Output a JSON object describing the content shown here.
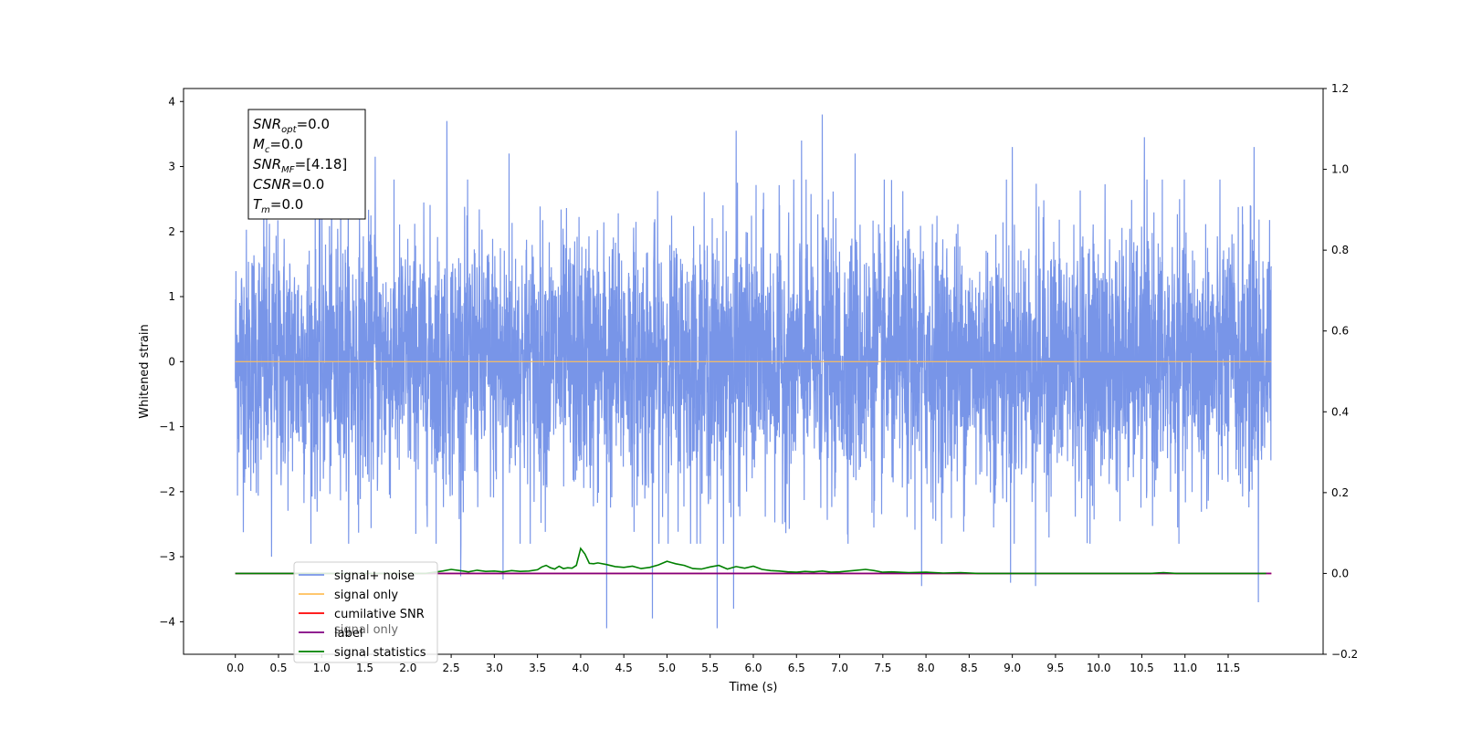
{
  "chart_data": {
    "type": "line",
    "xlabel": "Time (s)",
    "ylabel": "Whitened strain",
    "xlim": [
      -0.6,
      12.6
    ],
    "ylim": [
      -4.5,
      4.2
    ],
    "y2lim": [
      -0.2,
      1.2
    ],
    "grid": false,
    "legend_position": "lower-left",
    "x_ticks": [
      0.0,
      0.5,
      1.0,
      1.5,
      2.0,
      2.5,
      3.0,
      3.5,
      4.0,
      4.5,
      5.0,
      5.5,
      6.0,
      6.5,
      7.0,
      7.5,
      8.0,
      8.5,
      9.0,
      9.5,
      10.0,
      10.5,
      11.0,
      11.5
    ],
    "x_tick_labels": [
      "0.0",
      "0.5",
      "1.0",
      "1.5",
      "2.0",
      "2.5",
      "3.0",
      "3.5",
      "4.0",
      "4.5",
      "5.0",
      "5.5",
      "6.0",
      "6.5",
      "7.0",
      "7.5",
      "8.0",
      "8.5",
      "9.0",
      "9.5",
      "10.0",
      "10.5",
      "11.0",
      "11.5"
    ],
    "y_ticks": [
      -4,
      -3,
      -2,
      -1,
      0,
      1,
      2,
      3,
      4
    ],
    "y_tick_labels": [
      "−4",
      "−3",
      "−2",
      "−1",
      "0",
      "1",
      "2",
      "3",
      "4"
    ],
    "y2_ticks": [
      -0.2,
      0.0,
      0.2,
      0.4,
      0.6,
      0.8,
      1.0,
      1.2
    ],
    "y2_tick_labels": [
      "−0.2",
      "0.0",
      "0.2",
      "0.4",
      "0.6",
      "0.8",
      "1.0",
      "1.2"
    ],
    "series": [
      {
        "name": "signal+ noise",
        "color": "#7895e8",
        "axis": "left",
        "x_range": [
          0.0,
          12.0
        ],
        "points": 4800,
        "std": 1.0,
        "peak_values": [
          {
            "x": 0.33,
            "y": 2.9
          },
          {
            "x": 0.42,
            "y": -3.0
          },
          {
            "x": 1.22,
            "y": 3.1
          },
          {
            "x": 1.62,
            "y": 3.15
          },
          {
            "x": 2.45,
            "y": 3.7
          },
          {
            "x": 2.61,
            "y": -3.3
          },
          {
            "x": 3.1,
            "y": -3.35
          },
          {
            "x": 3.17,
            "y": 3.2
          },
          {
            "x": 4.3,
            "y": -4.1
          },
          {
            "x": 4.83,
            "y": -3.95
          },
          {
            "x": 5.58,
            "y": -4.1
          },
          {
            "x": 5.77,
            "y": -3.8
          },
          {
            "x": 5.8,
            "y": 3.55
          },
          {
            "x": 6.56,
            "y": 3.4
          },
          {
            "x": 6.8,
            "y": 3.8
          },
          {
            "x": 7.18,
            "y": 3.2
          },
          {
            "x": 7.95,
            "y": -3.45
          },
          {
            "x": 8.98,
            "y": -3.4
          },
          {
            "x": 9.0,
            "y": 3.3
          },
          {
            "x": 9.27,
            "y": -3.45
          },
          {
            "x": 10.53,
            "y": 3.45
          },
          {
            "x": 11.8,
            "y": 3.3
          },
          {
            "x": 11.85,
            "y": -3.7
          }
        ]
      },
      {
        "name": "signal only",
        "color": "#ffbf5a",
        "axis": "left",
        "x": [
          0.0,
          12.0
        ],
        "y": [
          0.0,
          0.0
        ]
      },
      {
        "name": "cumilative SNR",
        "color": "#ff0000",
        "axis": "right",
        "x": [
          0.0,
          12.0
        ],
        "y": [
          0.0,
          0.0
        ]
      },
      {
        "name": "label",
        "color": "#800080",
        "axis": "right",
        "x": [
          0.0,
          12.0
        ],
        "y": [
          0.0,
          0.0
        ]
      },
      {
        "name": "signal statistics",
        "color": "#008000",
        "axis": "right",
        "x": [
          0.0,
          2.2,
          2.4,
          2.5,
          2.6,
          2.7,
          2.8,
          2.9,
          3.0,
          3.1,
          3.2,
          3.3,
          3.4,
          3.5,
          3.55,
          3.6,
          3.65,
          3.7,
          3.75,
          3.8,
          3.85,
          3.9,
          3.95,
          4.0,
          4.05,
          4.1,
          4.15,
          4.2,
          4.3,
          4.4,
          4.5,
          4.6,
          4.7,
          4.8,
          4.9,
          5.0,
          5.05,
          5.1,
          5.2,
          5.3,
          5.4,
          5.5,
          5.6,
          5.7,
          5.8,
          5.9,
          6.0,
          6.1,
          6.2,
          6.3,
          6.4,
          6.5,
          6.6,
          6.7,
          6.8,
          6.9,
          7.0,
          7.1,
          7.2,
          7.3,
          7.4,
          7.5,
          7.6,
          7.8,
          8.0,
          8.2,
          8.4,
          8.6,
          10.6,
          10.75,
          10.9,
          11.94
        ],
        "y": [
          0.0,
          0.0,
          0.006,
          0.01,
          0.007,
          0.004,
          0.008,
          0.005,
          0.006,
          0.004,
          0.007,
          0.005,
          0.006,
          0.009,
          0.016,
          0.02,
          0.014,
          0.011,
          0.018,
          0.012,
          0.014,
          0.013,
          0.02,
          0.062,
          0.048,
          0.025,
          0.024,
          0.026,
          0.022,
          0.017,
          0.015,
          0.018,
          0.012,
          0.015,
          0.021,
          0.03,
          0.027,
          0.024,
          0.02,
          0.012,
          0.011,
          0.016,
          0.02,
          0.011,
          0.017,
          0.013,
          0.018,
          0.01,
          0.007,
          0.006,
          0.004,
          0.003,
          0.005,
          0.004,
          0.006,
          0.003,
          0.004,
          0.006,
          0.008,
          0.01,
          0.007,
          0.003,
          0.004,
          0.002,
          0.003,
          0.001,
          0.002,
          0.0,
          0.0,
          0.002,
          0.0,
          0.0
        ]
      }
    ],
    "annotation_box": {
      "lines": [
        {
          "main": "SNR",
          "sub": "opt",
          "rest": "=0.0"
        },
        {
          "main": "M",
          "sub": "c",
          "rest": "=0.0"
        },
        {
          "main": "SNR",
          "sub": "MF",
          "rest": "=[4.18]"
        },
        {
          "main": "CSNR",
          "sub": "",
          "rest": "=0.0"
        },
        {
          "main": "T",
          "sub": "m",
          "rest": "=0.0"
        }
      ]
    },
    "legend_entries": [
      "signal+ noise",
      "signal only",
      "cumilative SNR",
      "label",
      "signal statistics"
    ],
    "legend_ghost_text": "signal only"
  }
}
